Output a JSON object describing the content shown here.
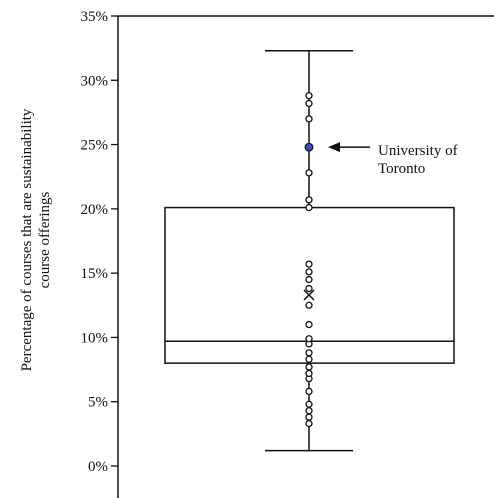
{
  "chart_data": {
    "type": "box",
    "ylabel_lines": [
      "Percentage of courses that are sustainability",
      "course offerings"
    ],
    "ylim": [
      0,
      35
    ],
    "y_ticks": [
      0,
      5,
      10,
      15,
      20,
      25,
      30,
      35
    ],
    "y_tick_labels": [
      "0%",
      "5%",
      "10%",
      "15%",
      "20%",
      "25%",
      "30%",
      "35%"
    ],
    "grid": false,
    "box": {
      "whisker_low": 1.2,
      "q1": 8.0,
      "median": 9.7,
      "q3": 20.1,
      "whisker_high": 32.3,
      "mean": 13.3
    },
    "points": [
      3.3,
      3.8,
      4.3,
      4.8,
      5.8,
      6.8,
      7.2,
      7.7,
      8.3,
      8.8,
      9.5,
      9.9,
      11.0,
      12.5,
      13.8,
      14.5,
      15.1,
      15.7,
      20.1,
      20.7,
      22.8,
      24.8,
      27.0,
      28.2,
      28.8
    ],
    "highlight": {
      "value": 24.8,
      "label_lines": [
        "University of",
        "Toronto"
      ],
      "color": "#2f55b7"
    }
  }
}
